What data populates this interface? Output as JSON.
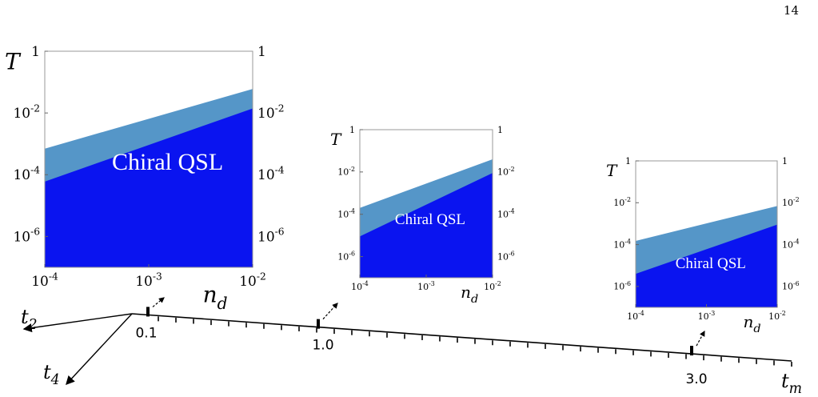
{
  "page_number": "14",
  "colors": {
    "upper_region": "#5596C8",
    "lower_region": "#0A14F0",
    "axis": "#000000"
  },
  "chart_data": [
    {
      "type": "area",
      "scale": "log-log",
      "ylabel": "T",
      "xlabel": "n_d",
      "xlim": [
        0.0001,
        0.01
      ],
      "ylim": [
        1e-07,
        1
      ],
      "x_ticks": [
        "10^-4",
        "10^-3",
        "10^-2"
      ],
      "y_ticks": [
        "10^-6",
        "10^-4",
        "10^-2",
        "1"
      ],
      "y_ticks_right": [
        "10^-6",
        "10^-4",
        "10^-2",
        "1"
      ],
      "annotation": "Chiral QSL",
      "series": [
        {
          "x": [
            0.0001,
            0.01
          ],
          "values": [
            6e-05,
            0.014
          ]
        },
        {
          "x": [
            0.0001,
            0.01
          ],
          "values": [
            0.0007,
            0.06
          ]
        }
      ]
    },
    {
      "type": "area",
      "scale": "log-log",
      "ylabel": "T",
      "xlabel": "n_d",
      "xlim": [
        0.0001,
        0.01
      ],
      "ylim": [
        1e-07,
        1
      ],
      "x_ticks": [
        "10^-4",
        "10^-3",
        "10^-2"
      ],
      "y_ticks": [
        "10^-6",
        "10^-4",
        "10^-2",
        "1"
      ],
      "y_ticks_right": [
        "10^-6",
        "10^-4",
        "10^-2",
        "1"
      ],
      "annotation": "Chiral QSL",
      "series": [
        {
          "x": [
            0.0001,
            0.01
          ],
          "values": [
            9e-06,
            0.009
          ]
        },
        {
          "x": [
            0.0001,
            0.01
          ],
          "values": [
            0.0002,
            0.04
          ]
        }
      ]
    },
    {
      "type": "area",
      "scale": "log-log",
      "ylabel": "T",
      "xlabel": "n_d",
      "xlim": [
        0.0001,
        0.01
      ],
      "ylim": [
        1e-07,
        1
      ],
      "x_ticks": [
        "10^-4",
        "10^-3",
        "10^-2"
      ],
      "y_ticks": [
        "10^-6",
        "10^-4",
        "10^-2",
        "1"
      ],
      "y_ticks_right": [
        "10^-6",
        "10^-4",
        "10^-2",
        "1"
      ],
      "annotation": "Chiral QSL",
      "series": [
        {
          "x": [
            0.0001,
            0.01
          ],
          "values": [
            4e-06,
            0.0009
          ]
        },
        {
          "x": [
            0.0001,
            0.01
          ],
          "values": [
            0.00015,
            0.007
          ]
        }
      ]
    }
  ],
  "parameter_axes": {
    "tm": {
      "label": "t_m",
      "ticks": [
        "0.1",
        "1.0",
        "3.0"
      ]
    },
    "t2": {
      "label": "t_2"
    },
    "t4": {
      "label": "t_4"
    }
  }
}
